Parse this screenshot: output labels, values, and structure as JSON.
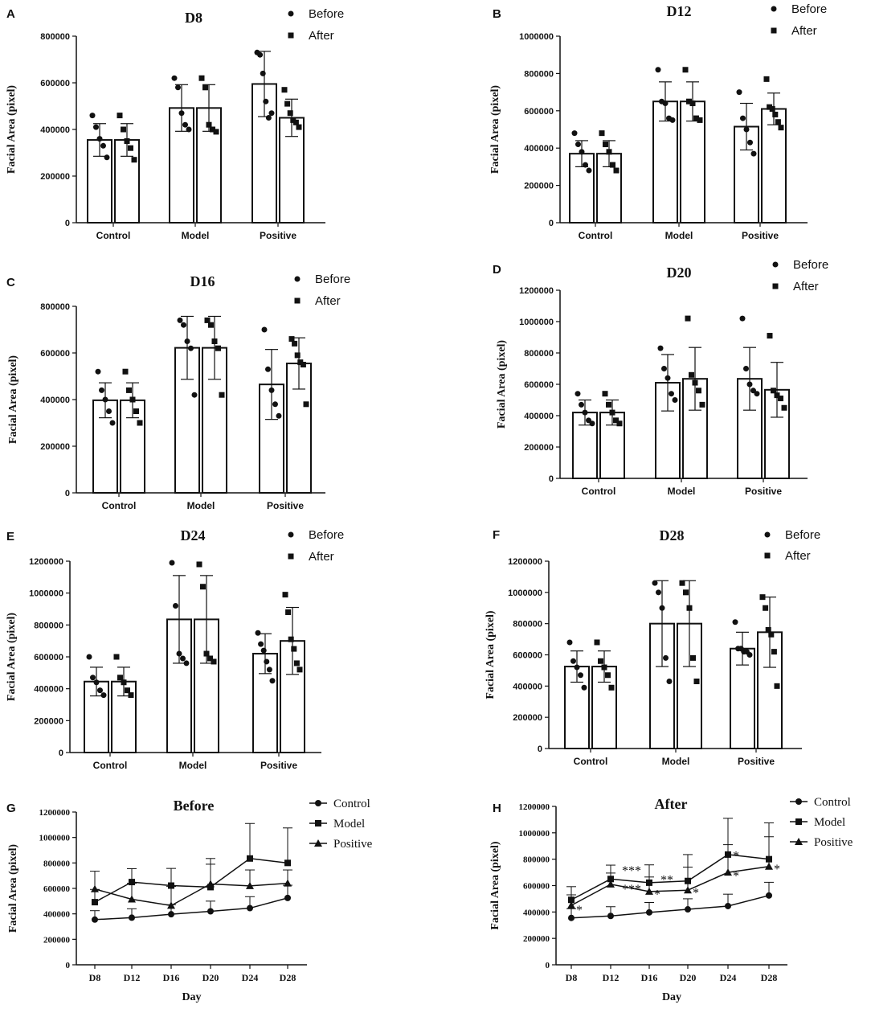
{
  "colors": {
    "ink": "#111111",
    "bar_fill": "#ffffff"
  },
  "chart_data": [
    {
      "panel": "A",
      "type": "bar",
      "title": "D8",
      "ylabel": "Facial Area (pixel)",
      "xlabel": "",
      "categories": [
        "Control",
        "Model",
        "Positive"
      ],
      "ylim": [
        0,
        800000
      ],
      "yticks": [
        "0",
        "200000",
        "400000",
        "600000",
        "800000"
      ],
      "series": [
        {
          "name": "Before",
          "marker": "circle",
          "values": [
            355000,
            492000,
            595000
          ],
          "sd": [
            70000,
            100000,
            140000
          ],
          "points": [
            [
              460000,
              410000,
              360000,
              330000,
              280000
            ],
            [
              620000,
              580000,
              470000,
              420000,
              400000
            ],
            [
              730000,
              720000,
              640000,
              520000,
              450000,
              470000
            ]
          ]
        },
        {
          "name": "After",
          "marker": "square",
          "values": [
            355000,
            492000,
            450000
          ],
          "sd": [
            70000,
            100000,
            80000
          ],
          "points": [
            [
              460000,
              400000,
              350000,
              320000,
              270000
            ],
            [
              620000,
              580000,
              420000,
              400000,
              390000
            ],
            [
              570000,
              510000,
              470000,
              440000,
              430000,
              410000
            ]
          ]
        }
      ]
    },
    {
      "panel": "B",
      "type": "bar",
      "title": "D12",
      "ylabel": "Facial Area (pixel)",
      "xlabel": "",
      "categories": [
        "Control",
        "Model",
        "Positive"
      ],
      "ylim": [
        0,
        1000000
      ],
      "yticks": [
        "0",
        "200000",
        "400000",
        "600000",
        "800000",
        "1000000"
      ],
      "series": [
        {
          "name": "Before",
          "marker": "circle",
          "values": [
            370000,
            650000,
            515000
          ],
          "sd": [
            70000,
            105000,
            125000
          ],
          "points": [
            [
              480000,
              420000,
              380000,
              310000,
              280000
            ],
            [
              820000,
              650000,
              640000,
              560000,
              550000
            ],
            [
              700000,
              560000,
              500000,
              430000,
              370000
            ]
          ]
        },
        {
          "name": "After",
          "marker": "square",
          "values": [
            370000,
            650000,
            610000
          ],
          "sd": [
            70000,
            105000,
            85000
          ],
          "points": [
            [
              480000,
              420000,
              380000,
              310000,
              280000
            ],
            [
              820000,
              650000,
              640000,
              560000,
              550000
            ],
            [
              770000,
              620000,
              610000,
              580000,
              540000,
              510000
            ]
          ]
        }
      ]
    },
    {
      "panel": "C",
      "type": "bar",
      "title": "D16",
      "ylabel": "Facial Area (pixel)",
      "xlabel": "",
      "categories": [
        "Control",
        "Model",
        "Positive"
      ],
      "ylim": [
        0,
        800000
      ],
      "yticks": [
        "0",
        "200000",
        "400000",
        "600000",
        "800000"
      ],
      "series": [
        {
          "name": "Before",
          "marker": "circle",
          "values": [
            397000,
            622000,
            465000
          ],
          "sd": [
            75000,
            135000,
            150000
          ],
          "points": [
            [
              520000,
              440000,
              400000,
              350000,
              300000
            ],
            [
              740000,
              720000,
              650000,
              620000,
              420000
            ],
            [
              700000,
              530000,
              440000,
              380000,
              330000
            ]
          ]
        },
        {
          "name": "After",
          "marker": "square",
          "values": [
            397000,
            622000,
            555000
          ],
          "sd": [
            75000,
            135000,
            110000
          ],
          "points": [
            [
              520000,
              440000,
              400000,
              350000,
              300000
            ],
            [
              740000,
              720000,
              650000,
              620000,
              420000
            ],
            [
              660000,
              640000,
              590000,
              560000,
              550000,
              380000
            ]
          ]
        }
      ]
    },
    {
      "panel": "D",
      "type": "bar",
      "title": "D20",
      "ylabel": "Facial Area (pixel)",
      "xlabel": "",
      "categories": [
        "Control",
        "Model",
        "Positive"
      ],
      "ylim": [
        0,
        1200000
      ],
      "yticks": [
        "0",
        "200000",
        "400000",
        "600000",
        "800000",
        "1000000",
        "1200000"
      ],
      "series": [
        {
          "name": "Before",
          "marker": "circle",
          "values": [
            420000,
            610000,
            635000
          ],
          "sd": [
            80000,
            180000,
            200000
          ],
          "points": [
            [
              540000,
              470000,
              420000,
              370000,
              350000
            ],
            [
              830000,
              700000,
              640000,
              540000,
              500000
            ],
            [
              1020000,
              700000,
              600000,
              560000,
              540000
            ]
          ]
        },
        {
          "name": "After",
          "marker": "square",
          "values": [
            420000,
            635000,
            565000
          ],
          "sd": [
            80000,
            200000,
            175000
          ],
          "points": [
            [
              540000,
              470000,
              420000,
              370000,
              350000
            ],
            [
              1020000,
              660000,
              610000,
              560000,
              470000
            ],
            [
              910000,
              560000,
              530000,
              510000,
              450000
            ]
          ]
        }
      ]
    },
    {
      "panel": "E",
      "type": "bar",
      "title": "D24",
      "ylabel": "Facial Area (pixel)",
      "xlabel": "",
      "categories": [
        "Control",
        "Model",
        "Positive"
      ],
      "ylim": [
        0,
        1200000
      ],
      "yticks": [
        "0",
        "200000",
        "400000",
        "600000",
        "800000",
        "1000000",
        "1200000"
      ],
      "series": [
        {
          "name": "Before",
          "marker": "circle",
          "values": [
            445000,
            835000,
            620000
          ],
          "sd": [
            90000,
            275000,
            125000
          ],
          "points": [
            [
              600000,
              470000,
              440000,
              390000,
              360000
            ],
            [
              1190000,
              920000,
              620000,
              590000,
              560000
            ],
            [
              750000,
              680000,
              640000,
              570000,
              520000,
              450000
            ]
          ]
        },
        {
          "name": "After",
          "marker": "square",
          "values": [
            445000,
            835000,
            700000
          ],
          "sd": [
            90000,
            275000,
            210000
          ],
          "points": [
            [
              600000,
              470000,
              440000,
              390000,
              360000
            ],
            [
              1180000,
              1040000,
              620000,
              590000,
              570000
            ],
            [
              990000,
              880000,
              710000,
              650000,
              560000,
              520000
            ]
          ]
        }
      ]
    },
    {
      "panel": "F",
      "type": "bar",
      "title": "D28",
      "ylabel": "Facial Area (pixel)",
      "xlabel": "",
      "categories": [
        "Control",
        "Model",
        "Positive"
      ],
      "ylim": [
        0,
        1200000
      ],
      "yticks": [
        "0",
        "200000",
        "400000",
        "600000",
        "800000",
        "1000000",
        "1200000"
      ],
      "series": [
        {
          "name": "Before",
          "marker": "circle",
          "values": [
            525000,
            800000,
            640000
          ],
          "sd": [
            100000,
            275000,
            105000
          ],
          "points": [
            [
              680000,
              560000,
              520000,
              470000,
              390000
            ],
            [
              1060000,
              1000000,
              900000,
              580000,
              430000
            ],
            [
              810000,
              640000,
              640000,
              620000,
              620000,
              600000
            ]
          ]
        },
        {
          "name": "After",
          "marker": "square",
          "values": [
            525000,
            800000,
            745000
          ],
          "sd": [
            100000,
            275000,
            225000
          ],
          "points": [
            [
              680000,
              560000,
              520000,
              470000,
              390000
            ],
            [
              1060000,
              1000000,
              900000,
              580000,
              430000
            ],
            [
              970000,
              900000,
              760000,
              730000,
              620000,
              400000
            ]
          ]
        }
      ]
    },
    {
      "panel": "G",
      "type": "line",
      "title": "Before",
      "ylabel": "Facial Area (pixel)",
      "xlabel": "Day",
      "categories": [
        "D8",
        "D12",
        "D16",
        "D20",
        "D24",
        "D28"
      ],
      "ylim": [
        0,
        1200000
      ],
      "yticks": [
        "0",
        "200000",
        "400000",
        "600000",
        "800000",
        "1000000",
        "1200000"
      ],
      "series": [
        {
          "name": "Control",
          "marker": "circle",
          "values": [
            355000,
            370000,
            397000,
            420000,
            445000,
            525000
          ],
          "sd": [
            70000,
            70000,
            75000,
            80000,
            90000,
            100000
          ]
        },
        {
          "name": "Model",
          "marker": "square",
          "values": [
            492000,
            650000,
            622000,
            610000,
            835000,
            800000
          ],
          "sd": [
            100000,
            105000,
            135000,
            180000,
            275000,
            275000
          ]
        },
        {
          "name": "Positive",
          "marker": "triangle",
          "values": [
            595000,
            515000,
            465000,
            635000,
            620000,
            640000
          ],
          "sd": [
            140000,
            125000,
            150000,
            200000,
            125000,
            105000
          ]
        }
      ]
    },
    {
      "panel": "H",
      "type": "line",
      "title": "After",
      "ylabel": "Facial Area (pixel)",
      "xlabel": "Day",
      "categories": [
        "D8",
        "D12",
        "D16",
        "D20",
        "D24",
        "D28"
      ],
      "ylim": [
        0,
        1200000
      ],
      "yticks": [
        "0",
        "200000",
        "400000",
        "600000",
        "800000",
        "1000000",
        "1200000"
      ],
      "series": [
        {
          "name": "Control",
          "marker": "circle",
          "values": [
            355000,
            370000,
            397000,
            420000,
            445000,
            525000
          ],
          "sd": [
            70000,
            70000,
            75000,
            80000,
            90000,
            100000
          ]
        },
        {
          "name": "Model",
          "marker": "square",
          "values": [
            492000,
            650000,
            622000,
            635000,
            835000,
            800000
          ],
          "sd": [
            100000,
            105000,
            135000,
            200000,
            275000,
            275000
          ]
        },
        {
          "name": "Positive",
          "marker": "triangle",
          "values": [
            450000,
            610000,
            555000,
            565000,
            700000,
            745000
          ],
          "sd": [
            80000,
            85000,
            110000,
            175000,
            210000,
            225000
          ]
        }
      ],
      "annotations": [
        {
          "text": "*",
          "category": "D8",
          "y": 420000
        },
        {
          "text": "***",
          "category": "D12",
          "y": 720000
        },
        {
          "text": "***",
          "category": "D12",
          "y": 580000
        },
        {
          "text": "**",
          "category": "D16",
          "y": 650000
        },
        {
          "text": "*",
          "category": "D16",
          "y": 540000
        },
        {
          "text": "*",
          "category": "D20",
          "y": 550000
        },
        {
          "text": "*",
          "category": "D24",
          "y": 830000
        },
        {
          "text": "*",
          "category": "D24",
          "y": 680000
        },
        {
          "text": "*",
          "category": "D28",
          "y": 730000
        }
      ]
    }
  ]
}
